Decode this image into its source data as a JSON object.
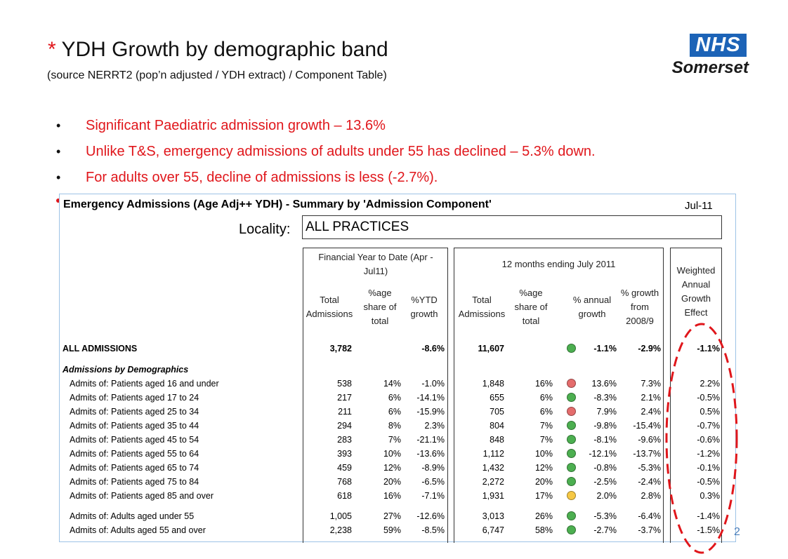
{
  "header": {
    "title_star": "*",
    "title": "YDH Growth by demographic band",
    "subtitle": "(source NERRT2 (pop’n adjusted / YDH extract) / Component Table)"
  },
  "logo": {
    "mark": "NHS",
    "name": "Somerset"
  },
  "bullets": [
    "Significant Paediatric admission growth – 13.6%",
    "Unlike T&S, emergency admissions of adults under 55 has declined – 5.3% down.",
    "For adults over 55, decline of admissions is less (-2.7%)."
  ],
  "table": {
    "title": "Emergency Admissions (Age Adj++ YDH) - Summary by 'Admission Component'",
    "date": "Jul-11",
    "locality_label": "Locality:",
    "locality_value": "ALL PRACTICES",
    "group1_title": [
      "Financial Year to Date (Apr -",
      "Jul11)"
    ],
    "group2_title": "12 months ending July 2011",
    "group3_title": [
      "Weighted",
      "Annual",
      "Growth",
      "Effect"
    ],
    "col_total": [
      "Total",
      "Admissions"
    ],
    "col_share": [
      "%age",
      "share of",
      "total"
    ],
    "col_ytd": [
      "%YTD",
      "growth"
    ],
    "col_annual": [
      "% annual",
      "growth"
    ],
    "col_2008": [
      "% growth",
      "from",
      "2008/9"
    ],
    "all_label": "ALL ADMISSIONS",
    "all": [
      "3,782",
      "",
      "-8.6%",
      "11,607",
      "",
      "green",
      "-1.1%",
      "-2.9%",
      "-1.1%"
    ],
    "section_label": "Admissions by Demographics",
    "rows": [
      {
        "label": "Admits of: Patients aged 16 and under",
        "v": [
          "538",
          "14%",
          "-1.0%",
          "1,848",
          "16%",
          "red",
          "13.6%",
          "7.3%",
          "2.2%"
        ]
      },
      {
        "label": "Admits of: Patients aged 17 to 24",
        "v": [
          "217",
          "6%",
          "-14.1%",
          "655",
          "6%",
          "green",
          "-8.3%",
          "2.1%",
          "-0.5%"
        ]
      },
      {
        "label": "Admits of: Patients aged 25 to 34",
        "v": [
          "211",
          "6%",
          "-15.9%",
          "705",
          "6%",
          "red",
          "7.9%",
          "2.4%",
          "0.5%"
        ]
      },
      {
        "label": "Admits of: Patients aged 35 to 44",
        "v": [
          "294",
          "8%",
          "2.3%",
          "804",
          "7%",
          "green",
          "-9.8%",
          "-15.4%",
          "-0.7%"
        ]
      },
      {
        "label": "Admits of: Patients aged 45 to 54",
        "v": [
          "283",
          "7%",
          "-21.1%",
          "848",
          "7%",
          "green",
          "-8.1%",
          "-9.6%",
          "-0.6%"
        ]
      },
      {
        "label": "Admits of: Patients aged 55 to 64",
        "v": [
          "393",
          "10%",
          "-13.6%",
          "1,112",
          "10%",
          "green",
          "-12.1%",
          "-13.7%",
          "-1.2%"
        ]
      },
      {
        "label": "Admits of: Patients aged 65 to 74",
        "v": [
          "459",
          "12%",
          "-8.9%",
          "1,432",
          "12%",
          "green",
          "-0.8%",
          "-5.3%",
          "-0.1%"
        ]
      },
      {
        "label": "Admits of: Patients aged 75 to 84",
        "v": [
          "768",
          "20%",
          "-6.5%",
          "2,272",
          "20%",
          "green",
          "-2.5%",
          "-2.4%",
          "-0.5%"
        ]
      },
      {
        "label": "Admits of: Patients aged 85 and over",
        "v": [
          "618",
          "16%",
          "-7.1%",
          "1,931",
          "17%",
          "amber",
          "2.0%",
          "2.8%",
          "0.3%"
        ]
      }
    ],
    "adult_rows": [
      {
        "label": "Admits of: Adults aged under 55",
        "v": [
          "1,005",
          "27%",
          "-12.6%",
          "3,013",
          "26%",
          "green",
          "-5.3%",
          "-6.4%",
          "-1.4%"
        ]
      },
      {
        "label": "Admits of: Adults aged 55 and over",
        "v": [
          "2,238",
          "59%",
          "-8.5%",
          "6,747",
          "58%",
          "green",
          "-2.7%",
          "-3.7%",
          "-1.5%"
        ]
      }
    ]
  },
  "colors": {
    "green": "#4caf50",
    "red": "#e46c6c",
    "amber": "#f6c844",
    "accent": "#e0161b",
    "nhs_blue": "#1c63b7"
  },
  "page_number": "2"
}
